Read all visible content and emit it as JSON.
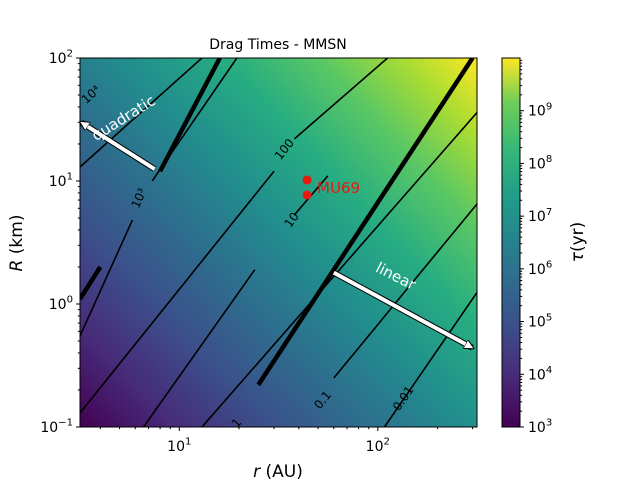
{
  "chart_data": {
    "type": "heatmap",
    "title": "Drag Times - MMSN",
    "xlabel_var": "r",
    "xlabel_unit": " (AU)",
    "ylabel_var": "R",
    "ylabel_unit": " (km)",
    "x_scale": "log",
    "y_scale": "log",
    "xlim": [
      3.16,
      316
    ],
    "ylim": [
      0.1,
      100
    ],
    "grid": false,
    "x_ticks": [
      {
        "value": 10,
        "base": "10",
        "exp": "1"
      },
      {
        "value": 100,
        "base": "10",
        "exp": "2"
      }
    ],
    "y_ticks": [
      {
        "value": 0.1,
        "base": "10",
        "exp": "−1"
      },
      {
        "value": 1,
        "base": "10",
        "exp": "0"
      },
      {
        "value": 10,
        "base": "10",
        "exp": "1"
      },
      {
        "value": 100,
        "base": "10",
        "exp": "2"
      }
    ],
    "colorbar": {
      "label_var": "τ",
      "label_unit": "(yr)",
      "colormap": "viridis",
      "scale": "log",
      "range": [
        1000,
        10000000000
      ],
      "ticks": [
        {
          "value": 1000,
          "base": "10",
          "exp": "3"
        },
        {
          "value": 10000,
          "base": "10",
          "exp": "4"
        },
        {
          "value": 100000,
          "base": "10",
          "exp": "5"
        },
        {
          "value": 1000000,
          "base": "10",
          "exp": "6"
        },
        {
          "value": 10000000,
          "base": "10",
          "exp": "7"
        },
        {
          "value": 100000000,
          "base": "10",
          "exp": "8"
        },
        {
          "value": 1000000000,
          "base": "10",
          "exp": "9"
        }
      ]
    },
    "contours": [
      {
        "label": "0.01",
        "label_at": [
          135,
          0.17
        ],
        "points": [
          [
            108,
            0.1
          ],
          [
            316,
            1.24
          ]
        ]
      },
      {
        "label": "0.1",
        "label_at": [
          53,
          0.165
        ],
        "points": [
          [
            60,
            0.25
          ],
          [
            316,
            6.5
          ]
        ]
      },
      {
        "label": "1",
        "label_at": [
          19.5,
          0.107
        ],
        "points": [
          [
            13,
            0.1
          ],
          [
            316,
            36
          ]
        ]
      },
      {
        "label": "10",
        "label_at": [
          37,
          4.8
        ],
        "points": [
          [
            6.6,
            0.1
          ],
          [
            24,
            1.9
          ]
        ],
        "points2": [
          [
            38,
            5.3
          ],
          [
            56,
            11
          ]
        ]
      },
      {
        "label": "100",
        "label_at": [
          34,
          18
        ],
        "points": [
          [
            3.16,
            0.13
          ],
          [
            30,
            12
          ]
        ],
        "points2": [
          [
            38,
            22
          ],
          [
            112,
            100
          ]
        ]
      },
      {
        "label": "10³",
        "label_exp": true,
        "label_at": [
          6.3,
          7.2
        ],
        "points": [
          [
            3.16,
            0.55
          ],
          [
            5.8,
            4.8
          ]
        ],
        "points2": [
          [
            7.3,
            10
          ],
          [
            19.5,
            100
          ]
        ]
      },
      {
        "label": "10⁴",
        "label_exp": true,
        "label_at": [
          3.6,
          50
        ],
        "points": [
          [
            3.16,
            13
          ],
          [
            13,
            100
          ]
        ]
      }
    ],
    "thick_boundaries": [
      {
        "points": [
          [
            25,
            0.22
          ],
          [
            300,
            100
          ]
        ]
      },
      {
        "points": [
          [
            8,
            12
          ],
          [
            16,
            100
          ]
        ]
      },
      {
        "points": [
          [
            3.16,
            1.1
          ],
          [
            4,
            2
          ]
        ]
      }
    ],
    "markers": {
      "color": "#e8190e",
      "label": "MU69",
      "points": [
        [
          44,
          10.2
        ],
        [
          44,
          7.7
        ]
      ]
    },
    "annotations": [
      {
        "text": "quadratic",
        "tail": [
          7.5,
          12.5
        ],
        "head": [
          3.2,
          30
        ],
        "label_at": [
          5.4,
          30
        ],
        "rotate": -32
      },
      {
        "text": "linear",
        "tail": [
          60,
          1.8
        ],
        "head": [
          300,
          0.44
        ],
        "label_at": [
          120,
          1.55
        ],
        "rotate": 27
      }
    ]
  }
}
